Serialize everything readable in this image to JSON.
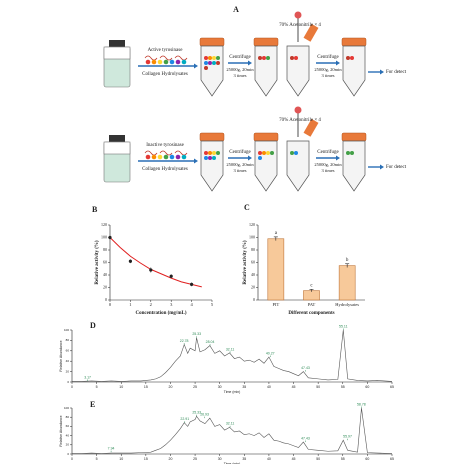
{
  "diagram": {
    "label": "A",
    "rows": [
      {
        "enzyme": "Active tyrosinase",
        "substrate": "Collagen Hydrolysates",
        "centrifuge": "Centrifuge",
        "condition": "25000g, 20min",
        "repeat": "3 times",
        "solvent": "70% Acetonitrile × 4",
        "centrifuge2": "Centrifuge",
        "condition2": "25000g, 20min",
        "repeat2": "3 times",
        "output": "For detect"
      },
      {
        "enzyme": "Inactive tyrosinase",
        "substrate": "Collagen Hydrolysates",
        "centrifuge": "Centrifuge",
        "condition": "25000g, 20min",
        "repeat": "3 times",
        "solvent": "70% Acetonitrile × 4",
        "centrifuge2": "Centrifuge",
        "condition2": "25000g, 20min",
        "repeat2": "3 times",
        "output": "For detect"
      }
    ]
  },
  "chart_data": [
    {
      "type": "scatter",
      "panel_label": "B",
      "x_label": "Concentration (mg/mL)",
      "y_label": "Relative activity (%)",
      "x": [
        0,
        1,
        2,
        3,
        4
      ],
      "values": [
        100,
        62,
        48,
        38,
        25
      ],
      "error": [
        3,
        3,
        4,
        3,
        3
      ],
      "color": "#222222",
      "fit": {
        "x": [
          0,
          0.5,
          1,
          1.5,
          2,
          2.5,
          3,
          3.5,
          4,
          4.5
        ],
        "values": [
          100,
          84,
          70,
          59,
          49,
          42,
          35,
          29,
          25,
          21
        ],
        "color": "#e02020"
      },
      "xlim": [
        0,
        5
      ],
      "xticks": [
        0,
        1,
        2,
        3,
        4,
        5
      ],
      "ylim": [
        0,
        120
      ],
      "yticks": [
        0,
        20,
        40,
        60,
        80,
        100,
        120
      ]
    },
    {
      "type": "bar",
      "panel_label": "C",
      "x_label": "Different components",
      "y_label": "Relative activity (%)",
      "categories": [
        "PIT",
        "PAT",
        "Hydrolysates"
      ],
      "values": [
        98,
        15,
        55
      ],
      "error": [
        3,
        2,
        3
      ],
      "annotations": [
        "a",
        "c",
        "b"
      ],
      "color": "#f7c99a",
      "ylim": [
        0,
        120
      ],
      "yticks": [
        0,
        20,
        40,
        60,
        80,
        100,
        120
      ]
    },
    {
      "type": "line",
      "panel_label": "D",
      "x_label": "Time (min)",
      "y_label": "Relative Abundance",
      "color": "#555555",
      "label_color": "#2e8b57",
      "x": [
        0,
        2,
        4,
        6,
        8,
        10,
        12,
        14,
        16,
        17,
        18,
        19,
        20,
        21,
        22,
        22.8,
        23.5,
        24,
        25,
        25.3,
        26,
        27,
        28,
        29,
        30,
        31,
        32,
        33,
        34,
        35,
        36,
        37,
        38,
        39,
        40,
        41,
        42,
        43,
        44,
        45,
        46,
        47,
        48,
        50,
        52,
        54,
        55.1,
        56,
        58,
        60,
        62,
        65
      ],
      "values": [
        1,
        1,
        2,
        1,
        2,
        1,
        2,
        2,
        4,
        6,
        10,
        18,
        28,
        40,
        50,
        72,
        55,
        65,
        60,
        85,
        58,
        62,
        70,
        55,
        60,
        50,
        56,
        45,
        48,
        40,
        42,
        38,
        44,
        36,
        48,
        30,
        26,
        22,
        20,
        16,
        12,
        20,
        8,
        6,
        4,
        5,
        100,
        6,
        3,
        2,
        3,
        1
      ],
      "peaks": [
        {
          "time": 3.17,
          "value": 2
        },
        {
          "time": 22.78,
          "value": 72
        },
        {
          "time": 25.33,
          "value": 85
        },
        {
          "time": 28.04,
          "value": 70
        },
        {
          "time": 32.11,
          "value": 56
        },
        {
          "time": 40.27,
          "value": 48
        },
        {
          "time": 47.43,
          "value": 20
        },
        {
          "time": 55.11,
          "value": 100
        }
      ],
      "xlim": [
        0,
        65
      ],
      "xticks": [
        0,
        5,
        10,
        15,
        20,
        25,
        30,
        35,
        40,
        45,
        50,
        55,
        60,
        65
      ],
      "ylim": [
        0,
        100
      ],
      "yticks": [
        0,
        20,
        40,
        60,
        80,
        100
      ]
    },
    {
      "type": "line",
      "panel_label": "E",
      "x_label": "Time (min)",
      "y_label": "Relative Abundance",
      "color": "#555555",
      "label_color": "#2e8b57",
      "x": [
        0,
        2,
        4,
        6,
        8,
        10,
        12,
        14,
        16,
        17,
        18,
        19,
        20,
        21,
        22,
        22.8,
        23.5,
        24,
        25,
        25.3,
        26,
        27,
        28,
        29,
        30,
        31,
        32,
        33,
        34,
        35,
        36,
        37,
        38,
        39,
        40,
        41,
        42,
        43,
        44,
        45,
        46,
        47,
        48,
        50,
        52,
        54,
        55.1,
        56,
        58,
        58.8,
        60,
        65
      ],
      "values": [
        1,
        1,
        2,
        1,
        2,
        2,
        2,
        3,
        4,
        8,
        12,
        20,
        30,
        42,
        55,
        68,
        60,
        70,
        75,
        82,
        72,
        66,
        78,
        60,
        64,
        52,
        58,
        48,
        50,
        42,
        44,
        40,
        46,
        36,
        44,
        30,
        28,
        24,
        22,
        18,
        14,
        26,
        10,
        8,
        6,
        7,
        30,
        8,
        4,
        100,
        3,
        1
      ],
      "peaks": [
        {
          "time": 7.94,
          "value": 4
        },
        {
          "time": 22.91,
          "value": 68
        },
        {
          "time": 25.33,
          "value": 82
        },
        {
          "time": 26.93,
          "value": 78
        },
        {
          "time": 32.11,
          "value": 58
        },
        {
          "time": 47.43,
          "value": 26
        },
        {
          "time": 55.97,
          "value": 30
        },
        {
          "time": 58.78,
          "value": 100
        }
      ],
      "xlim": [
        0,
        65
      ],
      "xticks": [
        0,
        5,
        10,
        15,
        20,
        25,
        30,
        35,
        40,
        45,
        50,
        55,
        60,
        65
      ],
      "ylim": [
        0,
        100
      ],
      "yticks": [
        0,
        20,
        40,
        60,
        80,
        100
      ]
    }
  ]
}
